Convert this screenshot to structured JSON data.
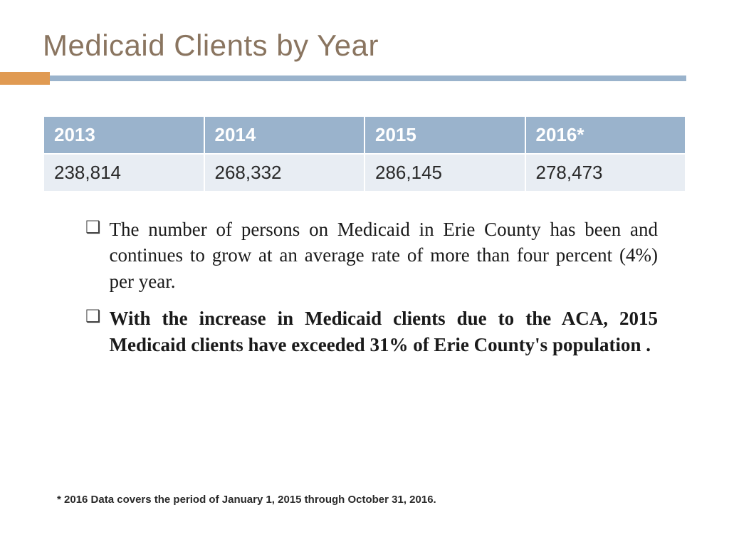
{
  "title": {
    "text": "Medicaid Clients by Year",
    "color": "#8a7560"
  },
  "accent": {
    "block_color": "#e09a52",
    "bar_color": "#9ab3cc"
  },
  "table": {
    "type": "table",
    "header_bg": "#9ab3cc",
    "header_fg": "#ffffff",
    "row_bg": "#e8edf3",
    "row_fg": "#2a2a2a",
    "columns": [
      "2013",
      "2014",
      "2015",
      "2016*"
    ],
    "rows": [
      [
        "238,814",
        "268,332",
        "286,145",
        "278,473"
      ]
    ]
  },
  "bullets": [
    {
      "marker": "❑",
      "text": "The number of persons on Medicaid in Erie County has been and continues to grow at an average rate of more than four percent (4%) per year.",
      "bold": false
    },
    {
      "marker": "❑",
      "text": "With the increase in Medicaid clients due to the ACA,  2015 Medicaid clients have exceeded 31% of Erie County's population .",
      "bold": true
    }
  ],
  "footnote": "* 2016 Data covers the period of January 1, 2015 through October 31, 2016."
}
